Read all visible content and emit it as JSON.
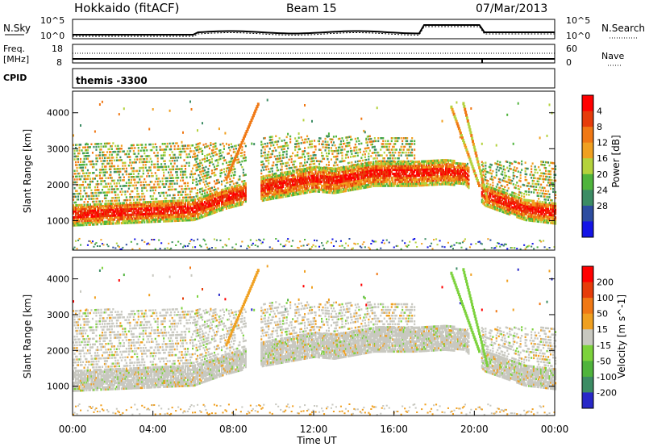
{
  "header": {
    "station": "Hokkaido (fitACF)",
    "beam": "Beam 15",
    "date": "07/Mar/2013"
  },
  "top_panels": {
    "nsky_label": "N.Sky",
    "nsky_ticks": [
      "10^5",
      "10^0"
    ],
    "nsearch_label": "N.Search",
    "nsearch_ticks": [
      "10^5",
      "10^0"
    ],
    "freq_label_1": "Freq.",
    "freq_label_2": "[MHz]",
    "freq_ticks": [
      "18",
      "8"
    ],
    "nave_label": "Nave",
    "nave_ticks": [
      "60",
      "0"
    ],
    "cpid_label": "CPID",
    "cpid_text": "themis -3300"
  },
  "chart_data": [
    {
      "type": "heatmap",
      "panel": "power",
      "ylabel": "Slant Range [km]",
      "xlabel": "",
      "yticks": [
        1000,
        2000,
        3000,
        4000
      ],
      "ylim": [
        180,
        4600
      ],
      "colorbar_label": "Power [dB]",
      "colorbar_ticks": [
        4,
        8,
        12,
        16,
        20,
        24,
        28
      ],
      "colors": [
        "#1414e6",
        "#2d4da0",
        "#3c8c64",
        "#4fb43c",
        "#b4d23c",
        "#f0a020",
        "#f07814",
        "#e63c0a",
        "#ff0000"
      ],
      "echo_band": {
        "hours": [
          0,
          2,
          4,
          6,
          7.5,
          8.5,
          9.5,
          11,
          12,
          13,
          14,
          15,
          16,
          17,
          18.5,
          19.5,
          20.5,
          21.5,
          22.5,
          24
        ],
        "center_km": [
          1150,
          1200,
          1250,
          1300,
          1600,
          1750,
          1900,
          2050,
          2150,
          2100,
          2200,
          2300,
          2300,
          2300,
          2350,
          2300,
          1700,
          1500,
          1300,
          1200
        ]
      }
    },
    {
      "type": "heatmap",
      "panel": "velocity",
      "ylabel": "Slant Range [km]",
      "xlabel": "Time UT",
      "yticks": [
        1000,
        2000,
        3000,
        4000
      ],
      "ylim": [
        180,
        4600
      ],
      "colorbar_label": "Velocity [m s^-1]",
      "colorbar_ticks": [
        200,
        100,
        50,
        15,
        -15,
        -50,
        -100,
        -200
      ],
      "colors": [
        "#2828c8",
        "#3c8c64",
        "#4fb43c",
        "#7cd23c",
        "#c8c8c0",
        "#f0a020",
        "#f07814",
        "#e63c0a",
        "#ff0000"
      ]
    }
  ],
  "time_axis": {
    "ticks": [
      "00:00",
      "04:00",
      "08:00",
      "12:00",
      "16:00",
      "20:00",
      "00:00"
    ],
    "label": "Time UT"
  }
}
